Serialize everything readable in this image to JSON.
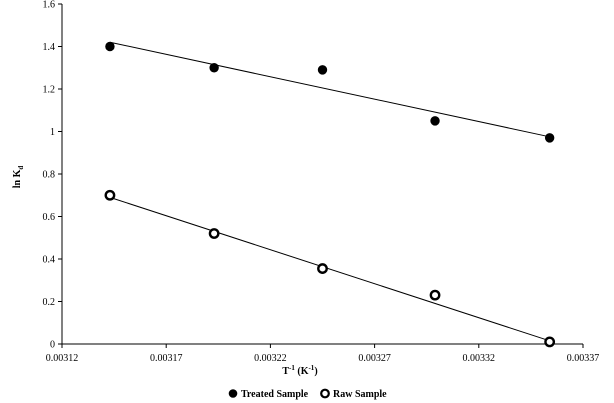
{
  "chart_data": {
    "type": "scatter",
    "xlabel": {
      "main": "T",
      "sup": "-1",
      "unit_pre": " (K",
      "unit_sup": "-1",
      "unit_post": ")"
    },
    "ylabel": {
      "main": "ln K",
      "sub": "d"
    },
    "xlim": [
      0.00312,
      0.00337
    ],
    "ylim": [
      0,
      1.6
    ],
    "xticks": [
      "0.00312",
      "0.00317",
      "0.00322",
      "0.00327",
      "0.00332",
      "0.00337"
    ],
    "yticks": [
      "0",
      "0.2",
      "0.4",
      "0.6",
      "0.8",
      "1",
      "1.2",
      "1.4",
      "1.6"
    ],
    "grid": false,
    "legend_position": "bottom",
    "series": [
      {
        "name": "Treated Sample",
        "marker": "filled-circle",
        "x": [
          0.003143,
          0.003193,
          0.003245,
          0.003299,
          0.003354
        ],
        "y": [
          1.4,
          1.3,
          1.29,
          1.05,
          0.97
        ],
        "trendline": {
          "x": [
            0.003143,
            0.003354
          ],
          "y": [
            1.42,
            0.975
          ]
        }
      },
      {
        "name": "Raw Sample",
        "marker": "open-circle",
        "x": [
          0.003143,
          0.003193,
          0.003245,
          0.003299,
          0.003354
        ],
        "y": [
          0.7,
          0.52,
          0.355,
          0.23,
          0.01
        ],
        "trendline": {
          "x": [
            0.003143,
            0.003354
          ],
          "y": [
            0.69,
            0.015
          ]
        }
      }
    ]
  }
}
